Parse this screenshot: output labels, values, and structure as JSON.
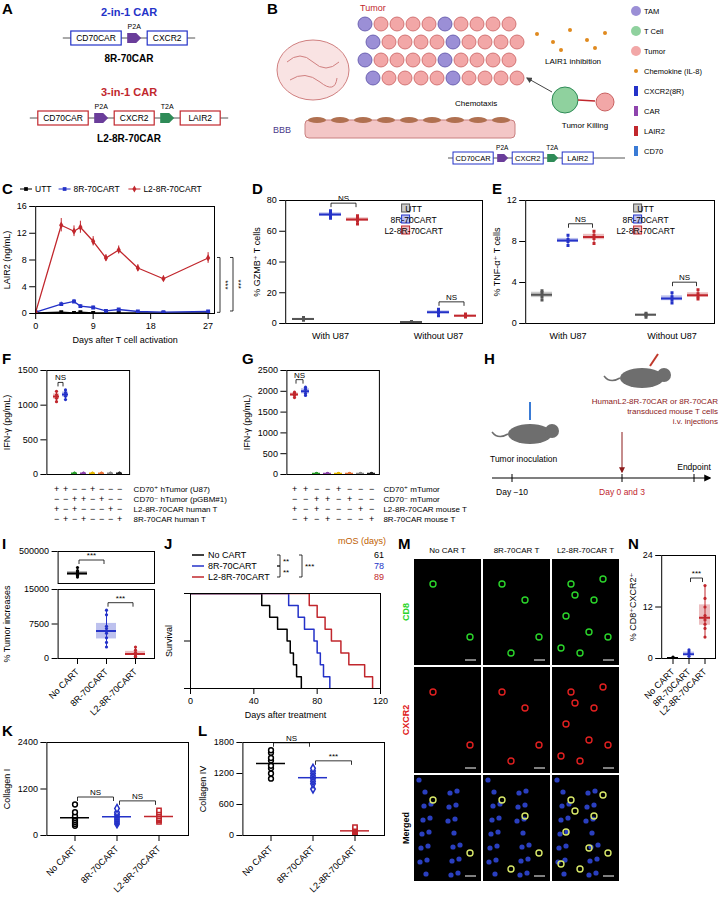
{
  "chart_data": [
    {
      "panel": "C",
      "type": "line",
      "x_label": "Days after T cell activation",
      "y_label": "LAIR2 (ng/mL)",
      "xlim": [
        0,
        28
      ],
      "xticks": [
        0,
        9,
        18,
        27
      ],
      "ylim": [
        0,
        16
      ],
      "yticks": [
        0,
        4,
        8,
        12,
        16
      ],
      "legend": "top",
      "x": [
        0,
        4,
        6,
        7,
        9,
        11,
        13,
        16,
        20,
        27
      ],
      "series": [
        {
          "name": "UTT",
          "color": "#000000",
          "marker": "square",
          "values": [
            0.1,
            0.2,
            0.1,
            0.2,
            0.1,
            0.1,
            0.1,
            0.1,
            0.1,
            0.1
          ],
          "errors": [
            0.05,
            0.05,
            0.05,
            0.05,
            0.05,
            0.05,
            0.05,
            0.05,
            0.05,
            0.05
          ]
        },
        {
          "name": "8R-70CART",
          "color": "#2432c8",
          "marker": "square",
          "values": [
            0.2,
            1.4,
            1.8,
            1.1,
            0.9,
            0.4,
            0.6,
            0.3,
            0.2,
            0.3
          ],
          "errors": [
            0.1,
            0.3,
            0.3,
            0.2,
            0.2,
            0.1,
            0.1,
            0.1,
            0.1,
            0.1
          ]
        },
        {
          "name": "L2-8R-70CART",
          "color": "#c1272d",
          "marker": "diamond",
          "values": [
            0.2,
            13.2,
            12.3,
            12.9,
            10.8,
            8.3,
            9.5,
            6.8,
            5.2,
            8.3
          ],
          "errors": [
            0.1,
            1.0,
            0.8,
            0.9,
            0.7,
            0.5,
            0.6,
            0.5,
            0.4,
            0.8
          ]
        }
      ],
      "significance": [
        {
          "between": [
            "UTT",
            "L2-8R-70CART"
          ],
          "label": "***"
        },
        {
          "between": [
            "8R-70CART",
            "L2-8R-70CART"
          ],
          "label": "***"
        }
      ]
    },
    {
      "panel": "D",
      "type": "box",
      "y_label": "% GZMB⁺ T cells",
      "ylim": [
        0,
        80
      ],
      "yticks": [
        0,
        20,
        40,
        60,
        80
      ],
      "categories": [
        "With U87",
        "Without U87"
      ],
      "legend": "top-right",
      "series": [
        {
          "name": "UTT",
          "color": "#555555",
          "marker": "square",
          "values": [
            [
              2.1,
              2.8,
              3.2,
              3.9
            ],
            [
              0.4,
              0.8,
              1.0,
              1.3
            ]
          ]
        },
        {
          "name": "8R-70CART",
          "color": "#2432c8",
          "marker": "square",
          "values": [
            [
              68.5,
              70.2,
              71.5,
              73.4
            ],
            [
              5.1,
              6.8,
              7.9,
              9.2
            ]
          ]
        },
        {
          "name": "L2-8R-70CART",
          "color": "#c1272d",
          "marker": "square",
          "values": [
            [
              64.8,
              66.9,
              68.3,
              70.1
            ],
            [
              4.2,
              4.9,
              5.3,
              6.1
            ]
          ]
        }
      ],
      "significance": [
        {
          "category": "With U87",
          "between": [
            "8R-70CART",
            "L2-8R-70CART"
          ],
          "label": "NS"
        },
        {
          "category": "Without U87",
          "between": [
            "8R-70CART",
            "L2-8R-70CART"
          ],
          "label": "NS"
        }
      ]
    },
    {
      "panel": "E",
      "type": "box",
      "y_label": "% TNF-α⁺ T cells",
      "ylim": [
        0,
        12
      ],
      "yticks": [
        0,
        4,
        8,
        12
      ],
      "categories": [
        "With U87",
        "Without U87"
      ],
      "legend": "top-right",
      "series": [
        {
          "name": "UTT",
          "color": "#555555",
          "marker": "square",
          "values": [
            [
              2.3,
              2.6,
              3.0,
              3.2
            ],
            [
              0.6,
              0.8,
              0.9,
              1.0
            ]
          ]
        },
        {
          "name": "8R-70CART",
          "color": "#2432c8",
          "marker": "square",
          "values": [
            [
              7.6,
              8.0,
              8.2,
              8.6
            ],
            [
              2.0,
              2.3,
              2.6,
              3.0
            ]
          ]
        },
        {
          "name": "L2-8R-70CART",
          "color": "#c1272d",
          "marker": "square",
          "values": [
            [
              7.8,
              8.3,
              8.6,
              9.0
            ],
            [
              2.4,
              2.6,
              2.9,
              3.3
            ]
          ]
        }
      ],
      "significance": [
        {
          "category": "With U87",
          "between": [
            "8R-70CART",
            "L2-8R-70CART"
          ],
          "label": "NS"
        },
        {
          "category": "Without U87",
          "between": [
            "8R-70CART",
            "L2-8R-70CART"
          ],
          "label": "NS"
        }
      ]
    },
    {
      "panel": "F",
      "type": "box",
      "y_label": "IFN-γ (pg/mL)",
      "ylim": [
        0,
        1500
      ],
      "yticks": [
        0,
        500,
        1000,
        1500
      ],
      "tick_labels": "y",
      "categories": [
        null,
        null,
        null,
        null,
        null,
        null,
        null,
        null
      ],
      "colors": [
        "#c1272d",
        "#2432c8",
        "#2ca02c",
        "#8e44ad",
        "#e6b800",
        "#e8743b",
        "#888888",
        "#222222"
      ],
      "values": [
        [
          1050,
          1100,
          1150,
          1200
        ],
        [
          1080,
          1130,
          1180,
          1220
        ],
        [
          10,
          15,
          15,
          20
        ],
        [
          10,
          15,
          15,
          20
        ],
        [
          10,
          15,
          15,
          20
        ],
        [
          10,
          15,
          15,
          20
        ],
        [
          10,
          15,
          15,
          20
        ],
        [
          10,
          15,
          15,
          20
        ]
      ],
      "conditions": [
        {
          "label": "CD70⁺ hTumor (U87)",
          "marks": [
            "+",
            "+",
            "−",
            "−",
            "+",
            "−",
            "−",
            "−"
          ]
        },
        {
          "label": "CD70⁻ hTumor (pGBM#1)",
          "marks": [
            "−",
            "−",
            "+",
            "+",
            "−",
            "+",
            "−",
            "−"
          ]
        },
        {
          "label": "L2-8R-70CAR human T",
          "marks": [
            "+",
            "−",
            "+",
            "−",
            "−",
            "−",
            "+",
            "−"
          ]
        },
        {
          "label": "8R-70CAR human T",
          "marks": [
            "−",
            "+",
            "−",
            "+",
            "−",
            "−",
            "−",
            "+"
          ]
        }
      ],
      "significance": [
        {
          "between": [
            0,
            1
          ],
          "label": "NS"
        }
      ]
    },
    {
      "panel": "G",
      "type": "box",
      "y_label": "IFN-γ (pg/mL)",
      "ylim": [
        0,
        2500
      ],
      "yticks": [
        0,
        500,
        1000,
        1500,
        2000,
        2500
      ],
      "tick_labels": "y",
      "categories": [
        null,
        null,
        null,
        null,
        null,
        null,
        null,
        null
      ],
      "colors": [
        "#c1272d",
        "#2432c8",
        "#2ca02c",
        "#8e44ad",
        "#e6b800",
        "#e8743b",
        "#888888",
        "#222222"
      ],
      "values": [
        [
          1850,
          1900,
          1950,
          1980
        ],
        [
          1900,
          1950,
          2050,
          2100
        ],
        [
          15,
          20,
          20,
          25
        ],
        [
          15,
          20,
          20,
          25
        ],
        [
          15,
          20,
          20,
          25
        ],
        [
          15,
          20,
          20,
          25
        ],
        [
          15,
          20,
          20,
          25
        ],
        [
          15,
          20,
          20,
          25
        ]
      ],
      "conditions": [
        {
          "label": "CD70⁺ mTumor",
          "marks": [
            "+",
            "+",
            "−",
            "−",
            "+",
            "−",
            "−",
            "−"
          ]
        },
        {
          "label": "CD70⁻ mTumor",
          "marks": [
            "−",
            "−",
            "+",
            "+",
            "−",
            "+",
            "−",
            "−"
          ]
        },
        {
          "label": "L2-8R-70CAR mouse T",
          "marks": [
            "+",
            "−",
            "+",
            "−",
            "−",
            "−",
            "+",
            "−"
          ]
        },
        {
          "label": "8R-70CAR mouse T",
          "marks": [
            "−",
            "+",
            "−",
            "+",
            "−",
            "−",
            "−",
            "+"
          ]
        }
      ],
      "significance": [
        {
          "between": [
            0,
            1
          ],
          "label": "NS"
        }
      ]
    },
    {
      "panel": "I",
      "type": "box",
      "tick_labels": "y",
      "ylim": [
        100000,
        500000
      ],
      "yticks": [
        500000
      ],
      "categories": [
        "No CART",
        "8R-70CART",
        "L2-8R-70CART"
      ],
      "colors": [
        "#000000",
        "#2432c8",
        "#c1272d"
      ],
      "values": [
        [
          180000,
          200000,
          210000,
          220000,
          230000,
          245000,
          260000,
          300000
        ],
        [],
        []
      ],
      "significance": [
        {
          "between": [
            "No CART",
            "8R-70CART"
          ],
          "label": "***"
        }
      ]
    },
    {
      "panel": "I",
      "type": "box",
      "y_label": "% Tumor increases",
      "ylim": [
        0,
        15000
      ],
      "yticks": [
        0,
        7500,
        15000
      ],
      "categories": [
        "No CART",
        "8R-70CART",
        "L2-8R-70CART"
      ],
      "colors": [
        "#000000",
        "#2432c8",
        "#c1272d"
      ],
      "values": [
        [],
        [
          2500,
          3500,
          4500,
          5500,
          6500,
          7000,
          9500,
          10500
        ],
        [
          300,
          500,
          800,
          1000,
          1300,
          1800,
          2500
        ]
      ],
      "significance": [
        {
          "between": [
            "8R-70CART",
            "L2-8R-70CART"
          ],
          "label": "***"
        }
      ]
    },
    {
      "panel": "J",
      "type": "line",
      "line_style": "step",
      "x_label": "Days after treatment",
      "y_label": "Survival",
      "xlim": [
        0,
        120
      ],
      "xticks": [
        0,
        40,
        80,
        120
      ],
      "ylim": [
        0,
        1
      ],
      "yticks": [
        0,
        0.5,
        1
      ],
      "tick_labels": "x",
      "legend": "top-left",
      "median_os_label": "mOS (days)",
      "series": [
        {
          "name": "No CART",
          "color": "#000000",
          "median_os": 61,
          "x": [
            0,
            45,
            50,
            55,
            61,
            63,
            65,
            67,
            70
          ],
          "values": [
            1,
            0.875,
            0.75,
            0.625,
            0.5,
            0.375,
            0.25,
            0.125,
            0
          ]
        },
        {
          "name": "8R-70CART",
          "color": "#2432c8",
          "median_os": 78,
          "x": [
            0,
            62,
            68,
            72,
            78,
            80,
            82,
            84,
            88
          ],
          "values": [
            1,
            0.875,
            0.75,
            0.625,
            0.5,
            0.375,
            0.25,
            0.125,
            0
          ]
        },
        {
          "name": "L2-8R-70CART",
          "color": "#c1272d",
          "median_os": 89,
          "x": [
            0,
            75,
            80,
            85,
            89,
            95,
            100,
            110,
            115
          ],
          "values": [
            1,
            0.875,
            0.75,
            0.625,
            0.5,
            0.375,
            0.25,
            0.125,
            0
          ]
        }
      ],
      "significance": [
        {
          "between": [
            "No CART",
            "8R-70CART"
          ],
          "label": "**"
        },
        {
          "between": [
            "No CART",
            "L2-8R-70CART"
          ],
          "label": "***"
        },
        {
          "between": [
            "8R-70CART",
            "L2-8R-70CART"
          ],
          "label": "**"
        }
      ]
    },
    {
      "panel": "K",
      "type": "scatter",
      "y_label": "Collagen I",
      "ylim": [
        0,
        2400
      ],
      "yticks": [
        0,
        1200,
        2400
      ],
      "series": [
        {
          "name": "No CART",
          "color": "#000000",
          "marker": "circle",
          "values": [
            250,
            300,
            350,
            400,
            450,
            500,
            600,
            800
          ]
        },
        {
          "name": "8R-70CART",
          "color": "#2432c8",
          "marker": "diamond",
          "values": [
            300,
            350,
            400,
            450,
            500,
            550,
            600,
            700
          ]
        },
        {
          "name": "L2-8R-70CART",
          "color": "#c1272d",
          "marker": "square",
          "values": [
            350,
            400,
            420,
            450,
            500,
            550,
            600,
            650
          ]
        }
      ],
      "significance": [
        {
          "between": [
            "No CART",
            "8R-70CART"
          ],
          "label": "NS"
        },
        {
          "between": [
            "8R-70CART",
            "L2-8R-70CART"
          ],
          "label": "NS"
        }
      ]
    },
    {
      "panel": "L",
      "type": "scatter",
      "y_label": "Collagen IV",
      "ylim": [
        0,
        1800
      ],
      "yticks": [
        0,
        600,
        1200,
        1800
      ],
      "series": [
        {
          "name": "No CART",
          "color": "#000000",
          "marker": "circle",
          "values": [
            1100,
            1200,
            1300,
            1350,
            1450,
            1500,
            1600,
            1650
          ]
        },
        {
          "name": "8R-70CART",
          "color": "#2432c8",
          "marker": "diamond",
          "values": [
            900,
            1000,
            1050,
            1100,
            1150,
            1200,
            1250,
            1300
          ]
        },
        {
          "name": "L2-8R-70CART",
          "color": "#c1272d",
          "marker": "square",
          "values": [
            20,
            40,
            60,
            80,
            100,
            120,
            140,
            160
          ]
        }
      ],
      "significance": [
        {
          "between": [
            "No CART",
            "8R-70CART"
          ],
          "label": "NS"
        },
        {
          "between": [
            "8R-70CART",
            "L2-8R-70CART"
          ],
          "label": "***"
        }
      ]
    },
    {
      "panel": "N",
      "type": "box",
      "y_label": "% CD8⁺CXCR2⁺",
      "ylim": [
        0,
        24
      ],
      "yticks": [
        0,
        12,
        24
      ],
      "categories": [
        "No CART",
        "8R-70CART",
        "L2-8R-70CART"
      ],
      "colors": [
        "#000000",
        "#2432c8",
        "#c1272d"
      ],
      "values": [
        [
          0,
          0,
          0.2,
          0.3
        ],
        [
          0.5,
          1,
          1,
          1.5,
          2
        ],
        [
          5,
          7,
          8,
          9,
          10,
          12,
          14,
          17
        ]
      ],
      "significance": [
        {
          "between": [
            "8R-70CART",
            "L2-8R-70CART"
          ],
          "label": "***"
        }
      ]
    }
  ],
  "diagrams": {
    "A": {
      "panel": "A",
      "constructs": [
        {
          "title": "2-in-1 CAR",
          "color": "#2432c8",
          "parts": [
            "CD70CAR",
            "P2A",
            "CXCR2"
          ],
          "name": "8R-70CAR"
        },
        {
          "title": "3-in-1 CAR",
          "color": "#c1272d",
          "parts": [
            "CD70CAR",
            "P2A",
            "CXCR2",
            "T2A",
            "LAIR2"
          ],
          "name": "L2-8R-70CAR"
        }
      ]
    },
    "B": {
      "panel": "B",
      "tumor": "Tumor",
      "bbb": "BBB",
      "inhibition": "LAIR1 inhibition",
      "chemotaxis": "Chemotaxis",
      "killing": "Tumor Killing",
      "legend_items": [
        "TAM",
        "T Cell",
        "Tumor",
        "Chemokine (IL-8)",
        "CXCR2(8R)",
        "CAR",
        "LAIR2",
        "CD70"
      ],
      "construct": [
        "CD70CAR",
        "P2A",
        "CXCR2",
        "T2A",
        "LAIR2"
      ]
    },
    "H": {
      "panel": "H",
      "inoculation": "Tumor inoculation",
      "treatment": [
        "HumanL2-8R-70CAR or 8R-70CAR",
        "transduced mouse T cells",
        "i.v. injections"
      ],
      "day_start": "Day −10",
      "day_treat": "Day 0 and 3",
      "endpoint": "Endpoint"
    },
    "M": {
      "panel": "M",
      "columns": [
        "No CAR T",
        "8R-70CAR T",
        "L2-8R-70CAR T"
      ],
      "rows": [
        "CD8",
        "CXCR2",
        "Merged"
      ]
    }
  }
}
